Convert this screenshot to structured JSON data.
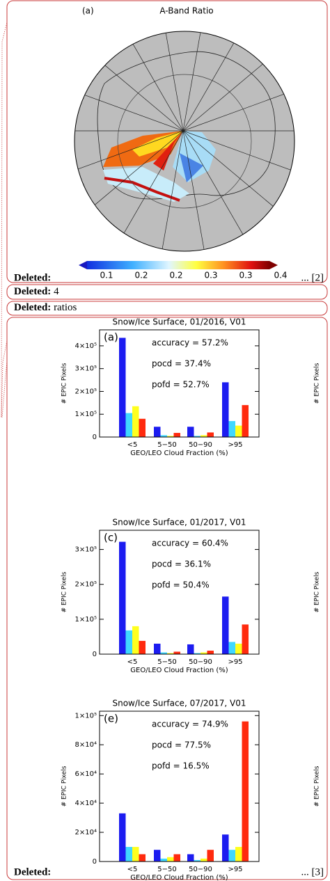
{
  "balloons": [
    {
      "label": "Deleted:",
      "ref": "... [2]"
    },
    {
      "label": "Deleted:",
      "text": "4"
    },
    {
      "label": "Deleted:",
      "text": "ratios"
    },
    {
      "label": "Deleted:",
      "ref": "... [3]"
    }
  ],
  "map": {
    "panel": "(a)",
    "title": "A-Band Ratio",
    "colorbar_labels": [
      "0.1",
      "0.2",
      "0.2",
      "0.3",
      "0.3",
      "0.4"
    ]
  },
  "chart_data": [
    {
      "type": "bar",
      "title": "Snow/Ice Surface, 01/2016, V01",
      "panel": "(a)",
      "annotations": [
        "accuracy = 57.2%",
        "pocd = 37.4%",
        "pofd = 52.7%"
      ],
      "ylabel": "# EPIC Pixels",
      "xlabel": "GEO/LEO Cloud Fraction (%)",
      "categories": [
        "<5",
        "5−50",
        "50−90",
        ">95"
      ],
      "series": [
        {
          "color": "#1c1cf0",
          "values": [
            435000,
            45000,
            45000,
            240000
          ]
        },
        {
          "color": "#3fd8ff",
          "values": [
            105000,
            8000,
            5000,
            70000
          ]
        },
        {
          "color": "#ffff1e",
          "values": [
            135000,
            5000,
            8000,
            50000
          ]
        },
        {
          "color": "#ff2a0e",
          "values": [
            80000,
            18000,
            20000,
            140000
          ]
        }
      ],
      "ylim": [
        0,
        470000
      ],
      "yticks": [
        0,
        {
          "value": 100000,
          "label": "1×10⁵"
        },
        {
          "value": 200000,
          "label": "2×10⁵"
        },
        {
          "value": 300000,
          "label": "3×10⁵"
        },
        {
          "value": 400000,
          "label": "4×10⁵"
        }
      ]
    },
    {
      "type": "bar",
      "title": "Snow/Ice Surface, 01/2017, V01",
      "panel": "(c)",
      "annotations": [
        "accuracy = 60.4%",
        "pocd = 36.1%",
        "pofd = 50.4%"
      ],
      "ylabel": "# EPIC Pixels",
      "xlabel": "GEO/LEO Cloud Fraction (%)",
      "categories": [
        "<5",
        "5−50",
        "50−90",
        ">95"
      ],
      "series": [
        {
          "color": "#1c1cf0",
          "values": [
            322000,
            30000,
            28000,
            165000
          ]
        },
        {
          "color": "#3fd8ff",
          "values": [
            68000,
            5000,
            3000,
            35000
          ]
        },
        {
          "color": "#ffff1e",
          "values": [
            80000,
            3000,
            5000,
            30000
          ]
        },
        {
          "color": "#ff2a0e",
          "values": [
            38000,
            7000,
            10000,
            85000
          ]
        }
      ],
      "ylim": [
        0,
        355000
      ],
      "yticks": [
        0,
        {
          "value": 100000,
          "label": "1×10⁵"
        },
        {
          "value": 200000,
          "label": "2×10⁵"
        },
        {
          "value": 300000,
          "label": "3×10⁵"
        }
      ]
    },
    {
      "type": "bar",
      "title": "Snow/Ice Surface, 07/2017, V01",
      "panel": "(e)",
      "annotations": [
        "accuracy = 74.9%",
        "pocd = 77.5%",
        "pofd = 16.5%"
      ],
      "ylabel": "# EPIC Pixels",
      "xlabel": "GEO/LEO Cloud Fraction (%)",
      "categories": [
        "<5",
        "5−50",
        "50−90",
        ">95"
      ],
      "series": [
        {
          "color": "#1c1cf0",
          "values": [
            33000,
            8000,
            5000,
            18500
          ]
        },
        {
          "color": "#3fd8ff",
          "values": [
            10000,
            2000,
            1000,
            8000
          ]
        },
        {
          "color": "#ffff1e",
          "values": [
            10000,
            3000,
            2000,
            10000
          ]
        },
        {
          "color": "#ff2a0e",
          "values": [
            5000,
            5000,
            8000,
            96000
          ]
        }
      ],
      "ylim": [
        0,
        103000
      ],
      "yticks": [
        0,
        {
          "value": 20000,
          "label": "2×10⁴"
        },
        {
          "value": 40000,
          "label": "4×10⁴"
        },
        {
          "value": 60000,
          "label": "6×10⁴"
        },
        {
          "value": 80000,
          "label": "8×10⁴"
        },
        {
          "value": 100000,
          "label": "1×10⁵"
        }
      ]
    }
  ]
}
